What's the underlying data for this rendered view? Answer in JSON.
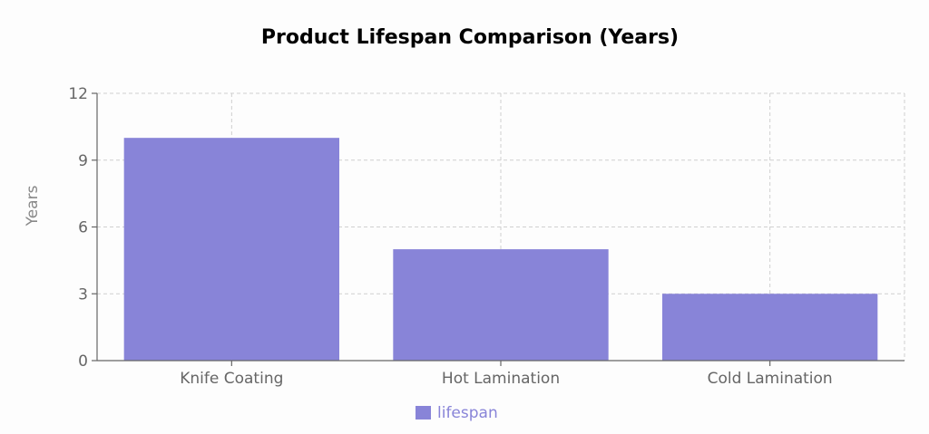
{
  "chart_data": {
    "type": "bar",
    "title": "Product Lifespan Comparison (Years)",
    "categories": [
      "Knife Coating",
      "Hot Lamination",
      "Cold Lamination"
    ],
    "series": [
      {
        "name": "lifespan",
        "values": [
          10,
          5,
          3
        ],
        "color": "#8884d8"
      }
    ],
    "xlabel": "",
    "ylabel": "Years",
    "ylim": [
      0,
      12
    ],
    "yticks": [
      0,
      3,
      6,
      9,
      12
    ],
    "grid": true,
    "legend_position": "bottom"
  }
}
